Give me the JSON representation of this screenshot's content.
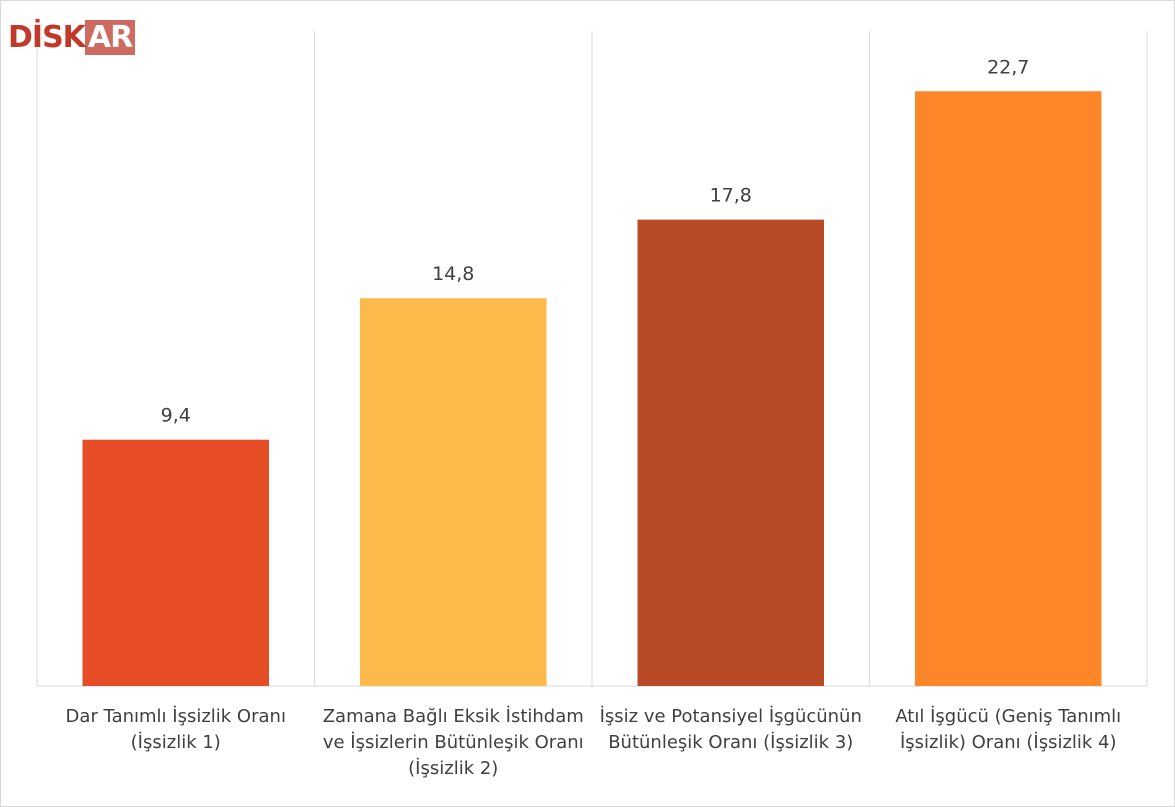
{
  "logo": {
    "main": "DİSK",
    "accent": "AR"
  },
  "chart_data": {
    "type": "bar",
    "categories": [
      "Dar Tanımlı İşsizlik Oranı (İşsizlik 1)",
      "Zamana Bağlı Eksik İstihdam ve İşsizlerin Bütünleşik Oranı (İşsizlik 2)",
      "İşsiz ve Potansiyel İşgücünün Bütünleşik Oranı (İşsizlik 3)",
      "Atıl İşgücü (Geniş Tanımlı İşsizlik) Oranı (İşsizlik 4)"
    ],
    "values": [
      9.4,
      14.8,
      17.8,
      22.7
    ],
    "value_labels": [
      "9,4",
      "14,8",
      "17,8",
      "22,7"
    ],
    "colors": [
      "#e64c25",
      "#fdb94a",
      "#b84a26",
      "#fd8629"
    ],
    "ylim": [
      0,
      25
    ]
  }
}
